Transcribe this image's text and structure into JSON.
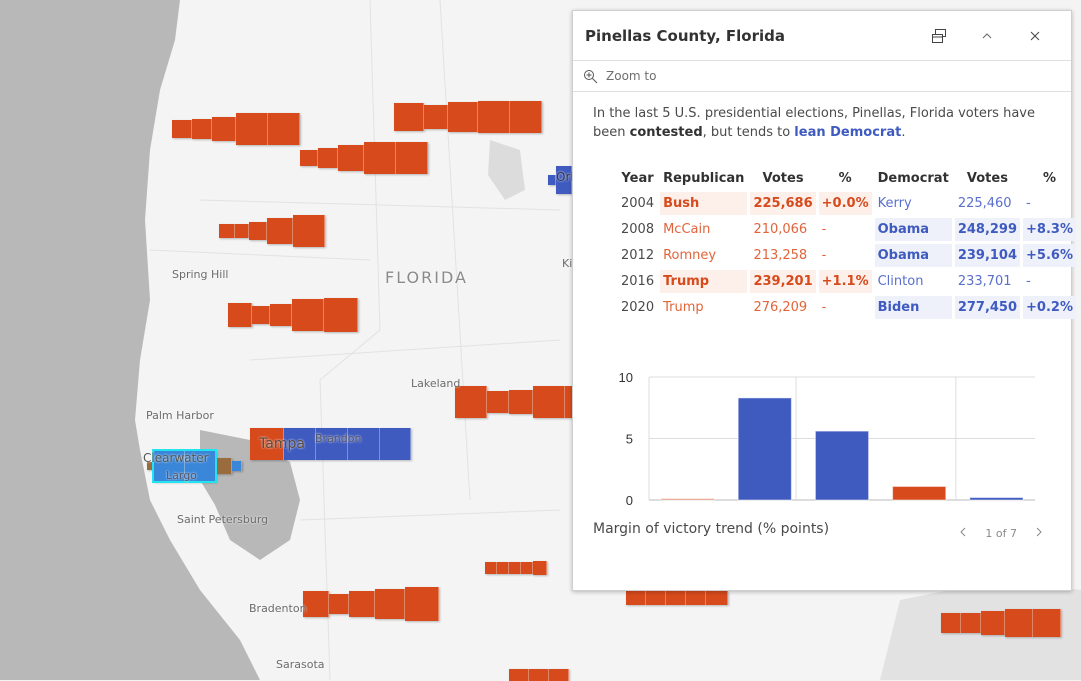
{
  "map": {
    "state_label": "FLORIDA",
    "places": [
      "Spring Hill",
      "Lakeland",
      "Palm Harbor",
      "Clearwater",
      "Largo",
      "Tampa",
      "Brandon",
      "Saint Petersburg",
      "Bradenton",
      "Sarasota",
      "Orl",
      "Ki"
    ],
    "colors": {
      "republican": "#d64a1c",
      "democrat": "#3f5bbf",
      "selected_outline": "#22e3f0",
      "water": "#b8b8b8",
      "land": "#f4f4f4"
    }
  },
  "popup": {
    "title": "Pinellas County, Florida",
    "dock_icon": "dock-icon",
    "collapse_icon": "chevron-up-icon",
    "close_icon": "close-icon",
    "zoom_to": "Zoom to",
    "desc_pre": "In the last 5 U.S. presidential elections, Pinellas, Florida voters have been ",
    "desc_bold": "contested",
    "desc_mid": ", but tends to ",
    "desc_lean": "lean Democrat",
    "desc_end": ".",
    "table": {
      "headers": [
        "Year",
        "Republican",
        "Votes",
        "%",
        "Democrat",
        "Votes",
        "%"
      ],
      "rows": [
        {
          "year": "2004",
          "rep": "Bush",
          "rep_votes": "225,686",
          "rep_pct": "+0.0%",
          "dem": "Kerry",
          "dem_votes": "225,460",
          "dem_pct": "-",
          "winner": "rep"
        },
        {
          "year": "2008",
          "rep": "McCain",
          "rep_votes": "210,066",
          "rep_pct": "-",
          "dem": "Obama",
          "dem_votes": "248,299",
          "dem_pct": "+8.3%",
          "winner": "dem"
        },
        {
          "year": "2012",
          "rep": "Romney",
          "rep_votes": "213,258",
          "rep_pct": "-",
          "dem": "Obama",
          "dem_votes": "239,104",
          "dem_pct": "+5.6%",
          "winner": "dem"
        },
        {
          "year": "2016",
          "rep": "Trump",
          "rep_votes": "239,201",
          "rep_pct": "+1.1%",
          "dem": "Clinton",
          "dem_votes": "233,701",
          "dem_pct": "-",
          "winner": "rep"
        },
        {
          "year": "2020",
          "rep": "Trump",
          "rep_votes": "276,209",
          "rep_pct": "-",
          "dem": "Biden",
          "dem_votes": "277,450",
          "dem_pct": "+0.2%",
          "winner": "dem"
        }
      ]
    },
    "chart_caption": "Margin of victory trend (% points)",
    "pager": "1 of 7"
  },
  "chart_data": {
    "type": "bar",
    "values": [
      0.0,
      8.3,
      5.6,
      1.1,
      0.2
    ],
    "colors": [
      "#e8957a",
      "#3f5bbf",
      "#3f5bbf",
      "#d64a1c",
      "#3f5bbf"
    ],
    "yticks": [
      "0",
      "5",
      "10"
    ],
    "ylim": [
      0,
      10
    ],
    "grid": true
  }
}
